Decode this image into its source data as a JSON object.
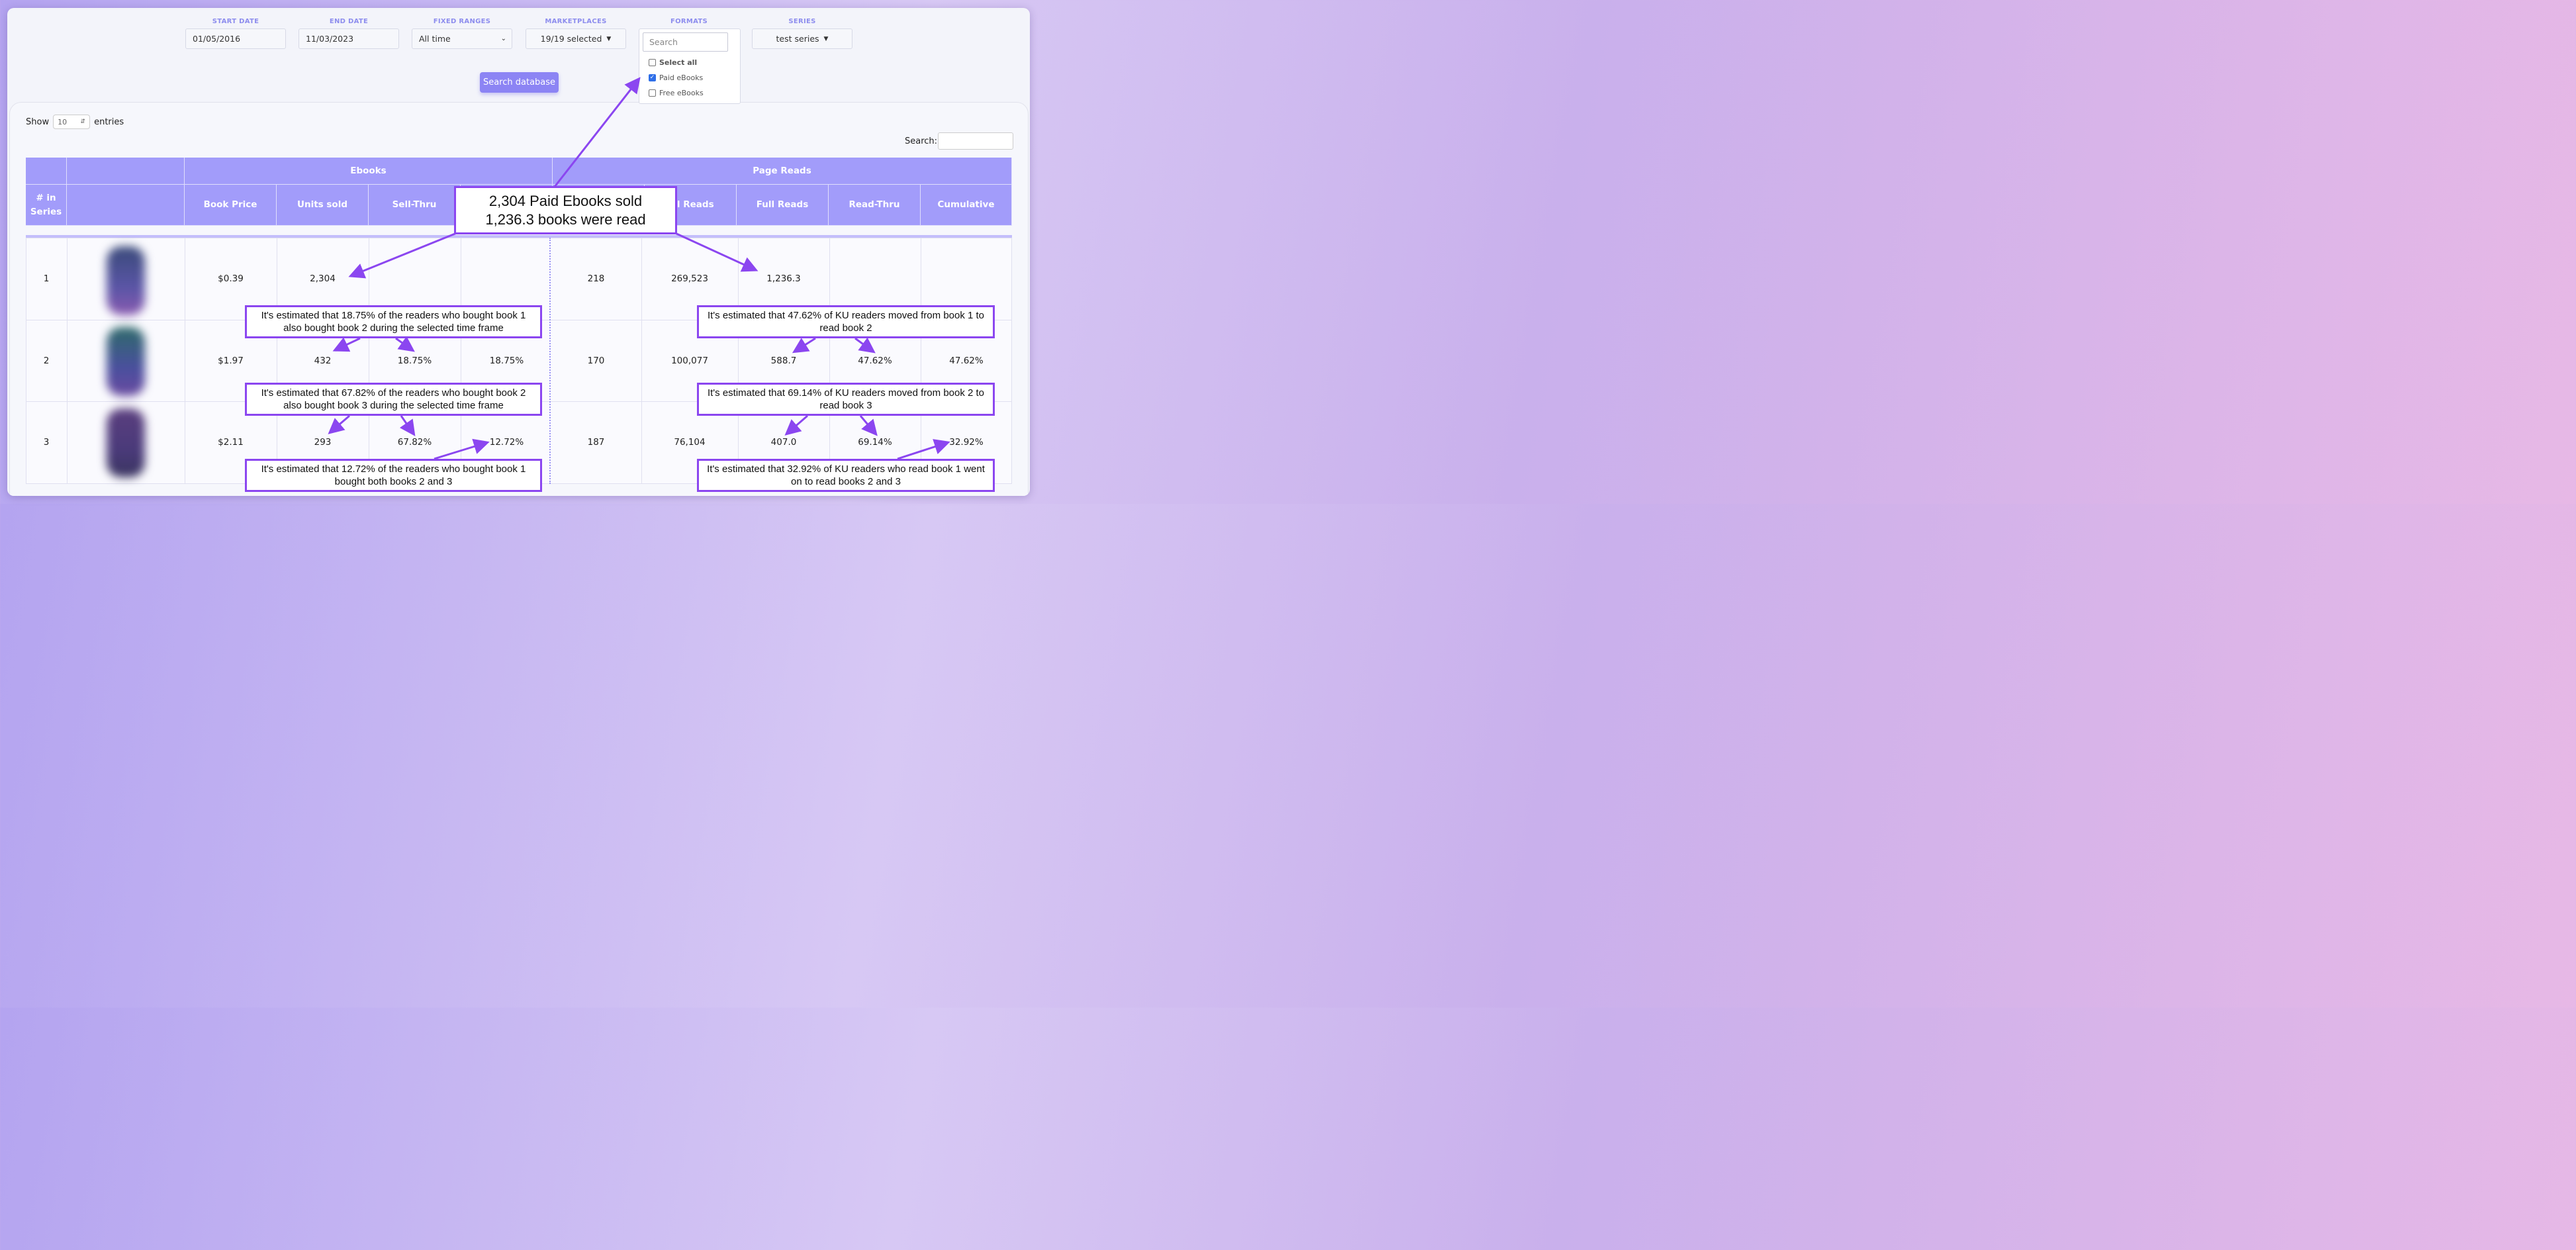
{
  "filters": {
    "start_date": {
      "label": "START DATE",
      "value": "01/05/2016"
    },
    "end_date": {
      "label": "END DATE",
      "value": "11/03/2023"
    },
    "fixed_ranges": {
      "label": "FIXED RANGES",
      "value": "All time"
    },
    "marketplaces": {
      "label": "MARKETPLACES",
      "value": "19/19 selected"
    },
    "formats": {
      "label": "FORMATS",
      "search_placeholder": "Search",
      "options": [
        {
          "label": "Select all",
          "checked": false
        },
        {
          "label": "Paid eBooks",
          "checked": true
        },
        {
          "label": "Free eBooks",
          "checked": false
        }
      ]
    },
    "series": {
      "label": "SERIES",
      "value": "test series"
    },
    "search_button": "Search database"
  },
  "table_controls": {
    "show_label": "Show",
    "entries_value": "10",
    "entries_label": "entries",
    "search_label": "Search:"
  },
  "table": {
    "group_headers": {
      "ebooks": "Ebooks",
      "page_reads": "Page Reads"
    },
    "columns": {
      "in_series": "# in Series",
      "book_price": "Book Price",
      "units_sold": "Units sold",
      "sell_thru": "Sell-Thru",
      "total_reads": "tal Reads",
      "full_reads": "Full Reads",
      "read_thru": "Read-Thru",
      "cumulative": "Cumulative"
    },
    "rows": [
      {
        "num": "1",
        "price": "$0.39",
        "units": "2,304",
        "sell_thru": "",
        "cum_sell": "",
        "borrows": "218",
        "total_reads": "269,523",
        "full_reads": "1,236.3",
        "read_thru": "",
        "cumulative": ""
      },
      {
        "num": "2",
        "price": "$1.97",
        "units": "432",
        "sell_thru": "18.75%",
        "cum_sell": "18.75%",
        "borrows": "170",
        "total_reads": "100,077",
        "full_reads": "588.7",
        "read_thru": "47.62%",
        "cumulative": "47.62%"
      },
      {
        "num": "3",
        "price": "$2.11",
        "units": "293",
        "sell_thru": "67.82%",
        "cum_sell": "12.72%",
        "borrows": "187",
        "total_reads": "76,104",
        "full_reads": "407.0",
        "read_thru": "69.14%",
        "cumulative": "32.92%"
      }
    ]
  },
  "callouts": {
    "main_line1": "2,304 Paid Ebooks sold",
    "main_line2": "1,236.3 books were read",
    "sell_12": "It's estimated that 18.75% of the readers who bought book 1 also bought book 2 during the selected time frame",
    "read_12": "It's estimated that 47.62% of KU readers moved from book 1 to read book 2",
    "sell_23": "It's estimated that 67.82% of the readers who bought book 2 also bought book 3 during the selected time frame",
    "read_23": "It's estimated that 69.14% of KU readers moved from book 2 to read book 3",
    "sell_13": "It's estimated that 12.72% of the readers who bought book 1 bought both books 2 and 3",
    "read_13": "It's estimated that 32.92% of KU readers who read book 1 went on to read books 2 and 3"
  },
  "colors": {
    "accent": "#a29cfa",
    "button": "#8c84f4",
    "arrow": "#8b46f0"
  }
}
